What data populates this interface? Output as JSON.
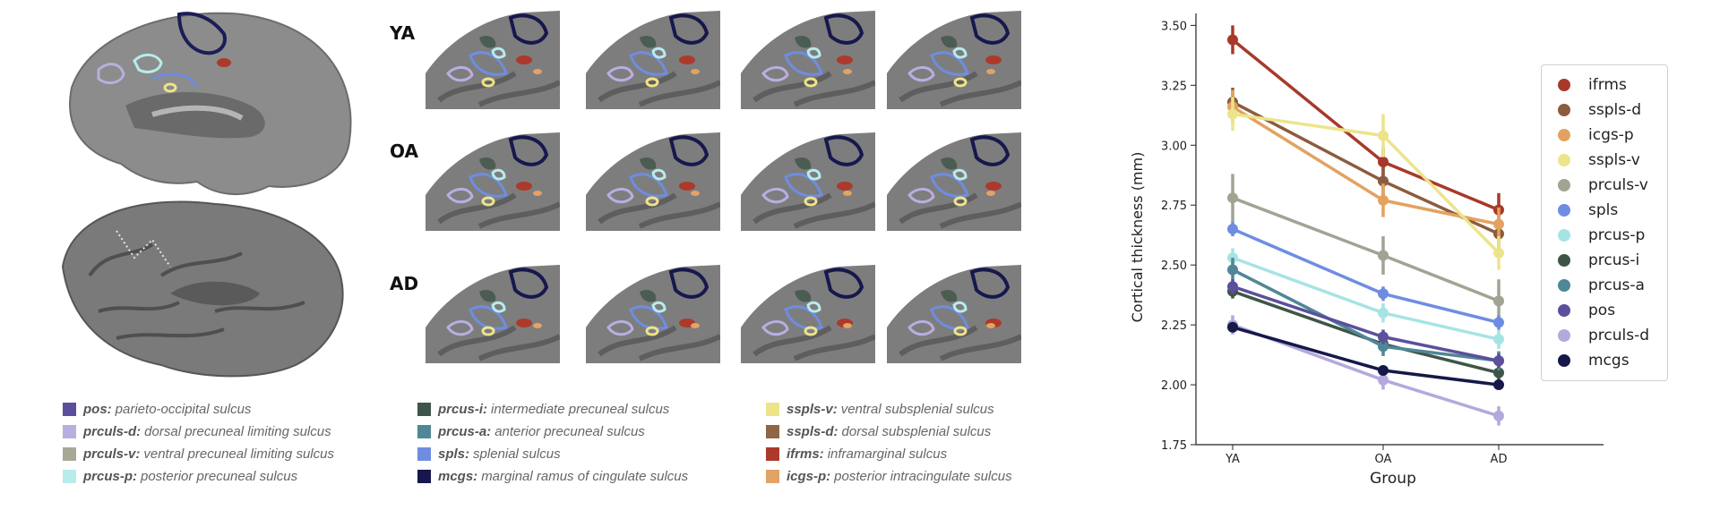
{
  "panel_a": {
    "row_labels": [
      "YA",
      "OA",
      "AD"
    ]
  },
  "legend_columns": [
    [
      {
        "abbr": "pos:",
        "desc": "parieto-occipital sulcus",
        "color": "#5a4f9c"
      },
      {
        "abbr": "prculs-d:",
        "desc": "dorsal precuneal limiting sulcus",
        "color": "#b9aee0"
      },
      {
        "abbr": "prculs-v:",
        "desc": "ventral precuneal limiting sulcus",
        "color": "#a9a894"
      },
      {
        "abbr": "prcus-p:",
        "desc": "posterior precuneal sulcus",
        "color": "#b7ecec"
      }
    ],
    [
      {
        "abbr": "prcus-i:",
        "desc": "intermediate precuneal sulcus",
        "color": "#3f5549"
      },
      {
        "abbr": "prcus-a:",
        "desc": "anterior precuneal sulcus",
        "color": "#4f8796"
      },
      {
        "abbr": "spls:",
        "desc": "splenial sulcus",
        "color": "#6f8de0"
      },
      {
        "abbr": "mcgs:",
        "desc": "marginal ramus of cingulate sulcus",
        "color": "#16184d"
      }
    ],
    [
      {
        "abbr": "sspls-v:",
        "desc": "ventral subsplenial sulcus",
        "color": "#efe38a"
      },
      {
        "abbr": "sspls-d:",
        "desc": "dorsal subsplenial sulcus",
        "color": "#8f6545"
      },
      {
        "abbr": "ifrms:",
        "desc": "inframarginal sulcus",
        "color": "#ab3a2b"
      },
      {
        "abbr": "icgs-p:",
        "desc": "posterior intracingulate sulcus",
        "color": "#e3a266"
      }
    ]
  ],
  "chart_data": {
    "type": "line",
    "xlabel": "Group",
    "ylabel": "Cortical thickness (mm)",
    "categories": [
      "YA",
      "OA",
      "AD"
    ],
    "ylim": [
      1.75,
      3.55
    ],
    "yticks": [
      1.75,
      2.0,
      2.25,
      2.5,
      2.75,
      3.0,
      3.25,
      3.5
    ],
    "ytick_labels": [
      "1.75",
      "2.00",
      "2.25",
      "2.50",
      "2.75",
      "3.00",
      "3.25",
      "3.50"
    ],
    "legend_position": "right",
    "series": [
      {
        "name": "ifrms",
        "color": "#a8392a",
        "values": [
          3.44,
          2.93,
          2.73
        ],
        "err": [
          0.06,
          0.06,
          0.07
        ]
      },
      {
        "name": "sspls-d",
        "color": "#8c5c3e",
        "values": [
          3.18,
          2.85,
          2.63
        ],
        "err": [
          0.06,
          0.06,
          0.06
        ]
      },
      {
        "name": "icgs-p",
        "color": "#e3a260",
        "values": [
          3.16,
          2.77,
          2.67
        ],
        "err": [
          0.07,
          0.07,
          0.07
        ]
      },
      {
        "name": "sspls-v",
        "color": "#ece48a",
        "values": [
          3.13,
          3.04,
          2.55
        ],
        "err": [
          0.07,
          0.09,
          0.07
        ]
      },
      {
        "name": "prculs-v",
        "color": "#a2a393",
        "values": [
          2.78,
          2.54,
          2.35
        ],
        "err": [
          0.1,
          0.08,
          0.09
        ]
      },
      {
        "name": "spls",
        "color": "#6e8de2",
        "values": [
          2.65,
          2.38,
          2.26
        ],
        "err": [
          0.03,
          0.03,
          0.03
        ]
      },
      {
        "name": "prcus-p",
        "color": "#a6e4e3",
        "values": [
          2.53,
          2.3,
          2.19
        ],
        "err": [
          0.04,
          0.04,
          0.04
        ]
      },
      {
        "name": "prcus-i",
        "color": "#3f5548",
        "values": [
          2.39,
          2.17,
          2.05
        ],
        "err": [
          0.03,
          0.03,
          0.03
        ]
      },
      {
        "name": "prcus-a",
        "color": "#4f8796",
        "values": [
          2.48,
          2.16,
          2.1
        ],
        "err": [
          0.05,
          0.04,
          0.04
        ]
      },
      {
        "name": "pos",
        "color": "#5c4f9c",
        "values": [
          2.41,
          2.2,
          2.1
        ],
        "err": [
          0.03,
          0.03,
          0.03
        ]
      },
      {
        "name": "prculs-d",
        "color": "#b3a9dc",
        "values": [
          2.25,
          2.02,
          1.87
        ],
        "err": [
          0.04,
          0.04,
          0.04
        ]
      },
      {
        "name": "mcgs",
        "color": "#151849",
        "values": [
          2.24,
          2.06,
          2.0
        ],
        "err": [
          0.02,
          0.02,
          0.02
        ]
      }
    ]
  }
}
